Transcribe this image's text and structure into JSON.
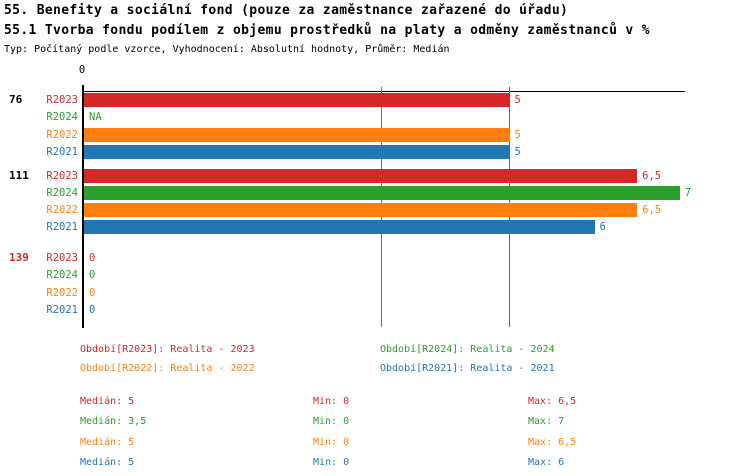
{
  "header": {
    "title1": "55. Benefity a sociální fond (pouze za zaměstnance zařazené do úřadu)",
    "title2": "55.1 Tvorba fondu podílem z objemu prostředků na platy a odměny zaměstnanců v %",
    "subtitle": "Typ: Počítaný podle vzorce, Vyhodnocení: Absolutní hodnoty, Průměr: Medián"
  },
  "colors": {
    "axis": "#000000",
    "r2023": "#d62728",
    "r2024": "#2ca02c",
    "r2022": "#ff7f0e",
    "r2021": "#1f77b4"
  },
  "chart_data": {
    "type": "bar",
    "orientation": "horizontal",
    "value_axis": {
      "min": 0,
      "max": 7,
      "zero_label": "0",
      "grid": false
    },
    "unit": "%",
    "series": [
      "R2023",
      "R2024",
      "R2022",
      "R2021"
    ],
    "series_colors": {
      "R2023": "#d62728",
      "R2024": "#2ca02c",
      "R2022": "#ff7f0e",
      "R2021": "#1f77b4"
    },
    "groups": [
      {
        "label": "76",
        "label_color": "#000000",
        "bars": [
          {
            "series": "R2023",
            "value": 5,
            "display": "5"
          },
          {
            "series": "R2024",
            "value": null,
            "display": "NA"
          },
          {
            "series": "R2022",
            "value": 5,
            "display": "5"
          },
          {
            "series": "R2021",
            "value": 5,
            "display": "5"
          }
        ]
      },
      {
        "label": "111",
        "label_color": "#000000",
        "bars": [
          {
            "series": "R2023",
            "value": 6.5,
            "display": "6,5"
          },
          {
            "series": "R2024",
            "value": 7,
            "display": "7"
          },
          {
            "series": "R2022",
            "value": 6.5,
            "display": "6,5"
          },
          {
            "series": "R2021",
            "value": 6,
            "display": "6"
          }
        ]
      },
      {
        "label": "139",
        "label_color": "#d62728",
        "bars": [
          {
            "series": "R2023",
            "value": 0,
            "display": "0"
          },
          {
            "series": "R2024",
            "value": 0,
            "display": "0"
          },
          {
            "series": "R2022",
            "value": 0,
            "display": "0"
          },
          {
            "series": "R2021",
            "value": 0,
            "display": "0"
          }
        ]
      }
    ],
    "median_lines": [
      {
        "series": "R2024",
        "value": 3.5,
        "color": "#2ca02c"
      },
      {
        "series": "R2021",
        "value": 5,
        "color": "#1f77b4"
      }
    ]
  },
  "legend": {
    "items": [
      {
        "text": "Období[R2023]: Realita - 2023",
        "color": "#d62728"
      },
      {
        "text": "Období[R2024]: Realita - 2024",
        "color": "#2ca02c"
      },
      {
        "text": "Období[R2022]: Realita - 2022",
        "color": "#ff7f0e"
      },
      {
        "text": "Období[R2021]: Realita - 2021",
        "color": "#1f77b4"
      }
    ]
  },
  "stats": {
    "rows": [
      {
        "color": "#d62728",
        "median_label": "Medián: 5",
        "min_label": "Min: 0",
        "max_label": "Max: 6,5"
      },
      {
        "color": "#2ca02c",
        "median_label": "Medián: 3,5",
        "min_label": "Min: 0",
        "max_label": "Max: 7"
      },
      {
        "color": "#ff7f0e",
        "median_label": "Medián: 5",
        "min_label": "Min: 0",
        "max_label": "Max: 6,5"
      },
      {
        "color": "#1f77b4",
        "median_label": "Medián: 5",
        "min_label": "Min: 0",
        "max_label": "Max: 6"
      }
    ]
  }
}
